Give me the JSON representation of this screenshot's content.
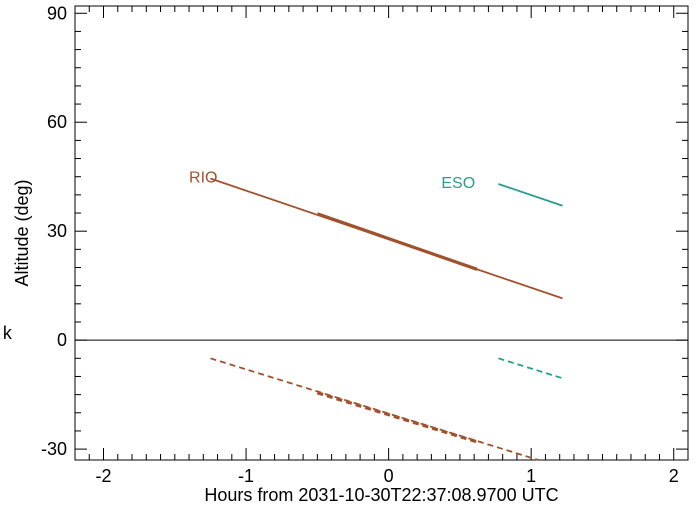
{
  "chart_data": {
    "type": "line",
    "title": "",
    "xlabel": "Hours from 2031-10-30T22:37:08.9700 UTC",
    "ylabel": "Altitude (deg)",
    "xlim": [
      -2.2,
      2.1
    ],
    "ylim": [
      -33,
      92
    ],
    "xticks": [
      -2,
      -1,
      0,
      1,
      2
    ],
    "yticks": [
      90,
      60,
      30,
      0,
      -30
    ],
    "zero_line": 0,
    "series": [
      {
        "name": "RIO",
        "color": "#a0522d",
        "style": "solid",
        "x": [
          -1.25,
          1.22
        ],
        "y": [
          44.5,
          11.5
        ]
      },
      {
        "name": "",
        "color": "#a0522d",
        "style": "solid-thick",
        "x": [
          -0.5,
          0.62
        ],
        "y": [
          34.8,
          19.5
        ]
      },
      {
        "name": "",
        "color": "#a0522d",
        "style": "dashed",
        "x": [
          -1.25,
          1.05
        ],
        "y": [
          -5,
          -33
        ]
      },
      {
        "name": "",
        "color": "#a0522d",
        "style": "dashed-thick",
        "x": [
          -0.5,
          0.62
        ],
        "y": [
          -14.5,
          -28
        ]
      },
      {
        "name": "ESO",
        "color": "#2a9d8f",
        "style": "solid",
        "x": [
          0.77,
          1.22
        ],
        "y": [
          43,
          37
        ]
      },
      {
        "name": "",
        "color": "#2a9d8f",
        "style": "dashed",
        "x": [
          0.77,
          1.22
        ],
        "y": [
          -5,
          -10.5
        ]
      }
    ],
    "annotations": [
      {
        "text": "RIO",
        "x": -1.4,
        "y": 45,
        "color": "#a0522d"
      },
      {
        "text": "ESO",
        "x": 0.37,
        "y": 43.5,
        "color": "#2a9d8f"
      }
    ]
  },
  "side_text": "k"
}
